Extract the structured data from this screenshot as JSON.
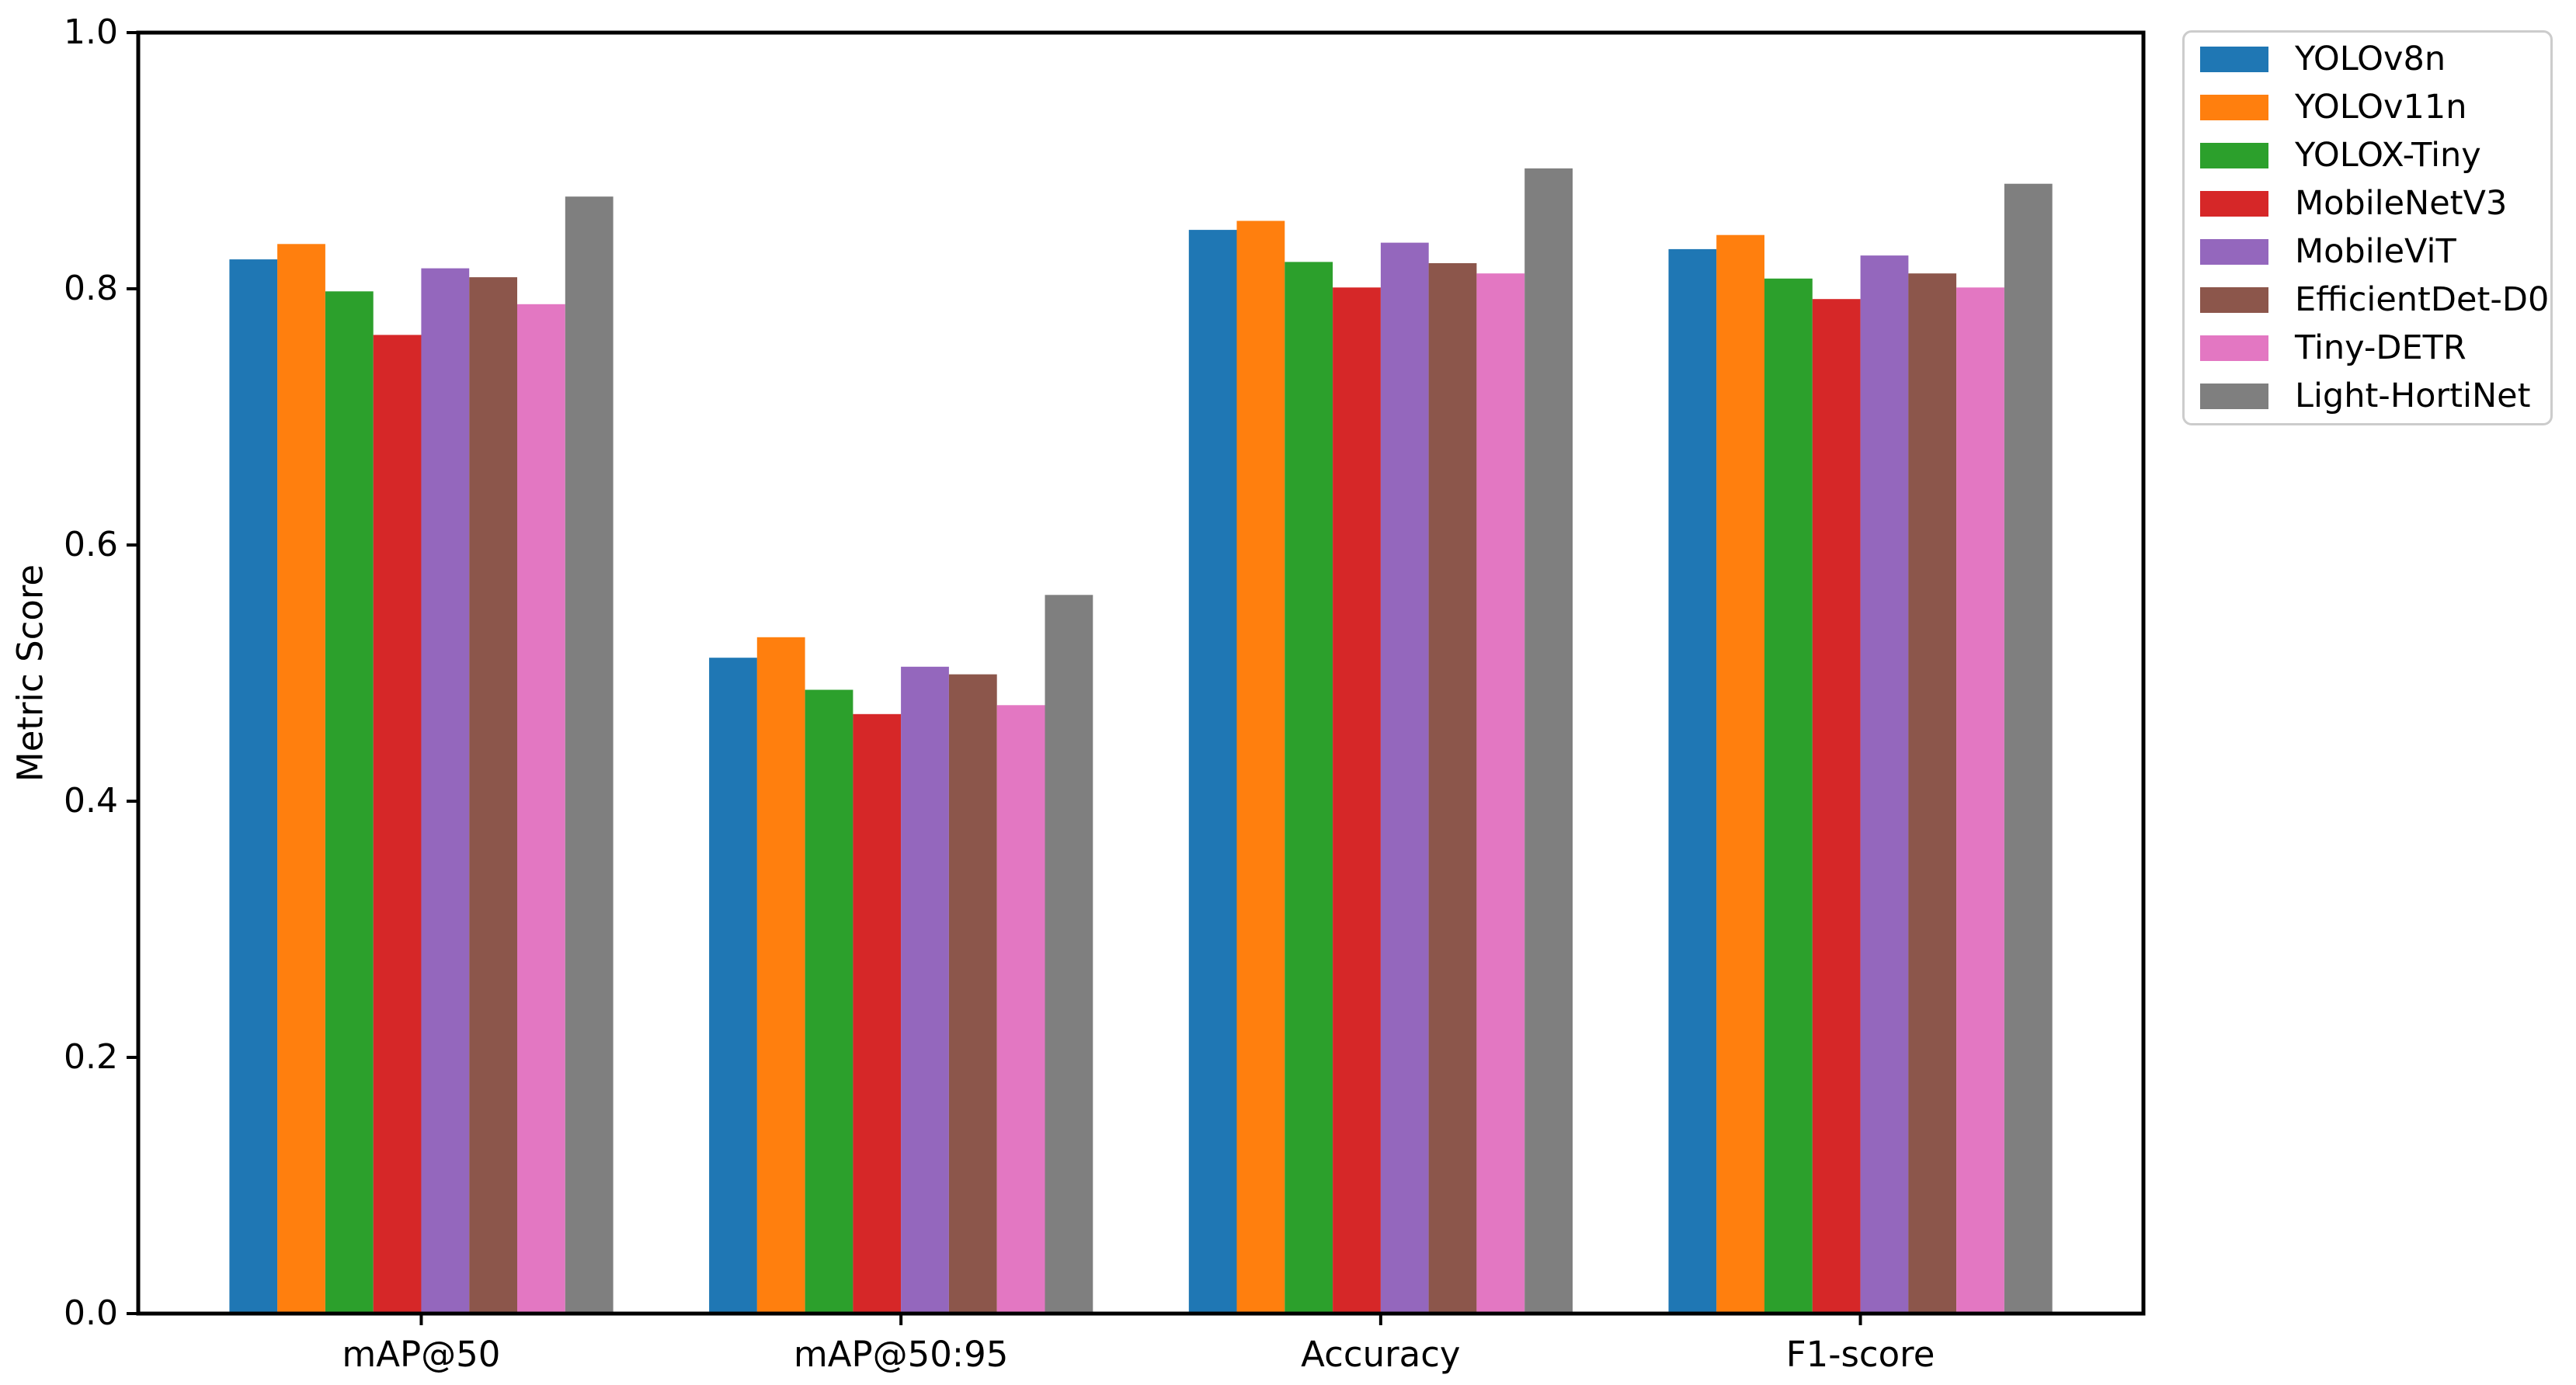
{
  "chart_data": {
    "type": "bar",
    "title": "",
    "xlabel": "",
    "ylabel": "Metric Score",
    "categories": [
      "mAP@50",
      "mAP@50:95",
      "Accuracy",
      "F1-score"
    ],
    "series": [
      {
        "name": "YOLOv8n",
        "color": "#1f77b4",
        "values": [
          0.823,
          0.512,
          0.846,
          0.831
        ]
      },
      {
        "name": "YOLOv11n",
        "color": "#ff7f0e",
        "values": [
          0.835,
          0.528,
          0.853,
          0.842
        ]
      },
      {
        "name": "YOLOX-Tiny",
        "color": "#2ca02c",
        "values": [
          0.798,
          0.487,
          0.821,
          0.808
        ]
      },
      {
        "name": "MobileNetV3",
        "color": "#d62728",
        "values": [
          0.764,
          0.468,
          0.801,
          0.792
        ]
      },
      {
        "name": "MobileViT",
        "color": "#9467bd",
        "values": [
          0.816,
          0.505,
          0.836,
          0.826
        ]
      },
      {
        "name": "EfficientDet-D0",
        "color": "#8c564b",
        "values": [
          0.809,
          0.499,
          0.82,
          0.812
        ]
      },
      {
        "name": "Tiny-DETR",
        "color": "#e377c2",
        "values": [
          0.788,
          0.475,
          0.812,
          0.801
        ]
      },
      {
        "name": "Light-HortiNet",
        "color": "#7f7f7f",
        "values": [
          0.872,
          0.561,
          0.894,
          0.882
        ]
      }
    ],
    "ylim": [
      0.0,
      1.0
    ],
    "ytick_labels": [
      "0.0",
      "0.2",
      "0.4",
      "0.6",
      "0.8",
      "1.0"
    ],
    "grid": false,
    "legend_position": "upper-right-outside",
    "bar_group_total_width_fraction": 0.8
  },
  "style_colors": {
    "spine": "#000000",
    "tick": "#000000",
    "text": "#000000",
    "legend_border": "#cccccc",
    "background": "#ffffff"
  }
}
